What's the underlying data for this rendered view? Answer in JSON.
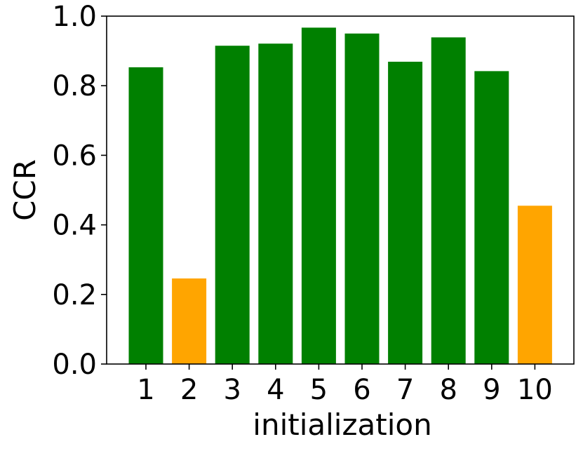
{
  "chart_data": {
    "type": "bar",
    "categories": [
      "1",
      "2",
      "3",
      "4",
      "5",
      "6",
      "7",
      "8",
      "9",
      "10"
    ],
    "values": [
      0.853,
      0.246,
      0.915,
      0.921,
      0.967,
      0.95,
      0.869,
      0.939,
      0.842,
      0.455
    ],
    "bar_colors": [
      "#008000",
      "#ffa500",
      "#008000",
      "#008000",
      "#008000",
      "#008000",
      "#008000",
      "#008000",
      "#008000",
      "#ffa500"
    ],
    "title": "",
    "xlabel": "initialization",
    "ylabel": "CCR",
    "ylim": [
      0,
      1.0
    ],
    "yticks": [
      "0.0",
      "0.2",
      "0.4",
      "0.6",
      "0.8",
      "1.0"
    ],
    "grid": false,
    "legend": null
  }
}
